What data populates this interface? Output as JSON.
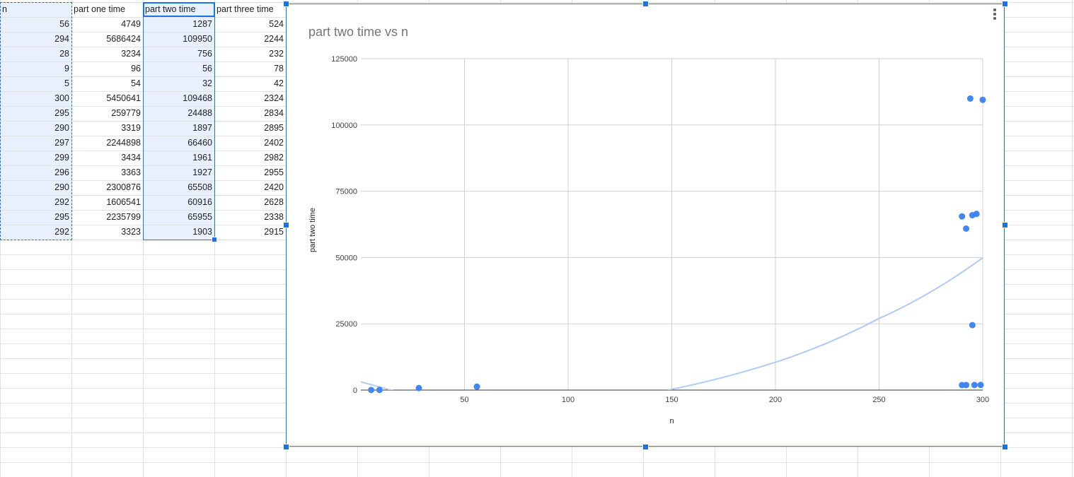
{
  "sheet": {
    "headers": [
      "n",
      "part one time",
      "part two time",
      "part three time"
    ],
    "rows": [
      [
        56,
        4749,
        1287,
        524
      ],
      [
        294,
        5686424,
        109950,
        2244
      ],
      [
        28,
        3234,
        756,
        232
      ],
      [
        9,
        96,
        56,
        78
      ],
      [
        5,
        54,
        32,
        42
      ],
      [
        300,
        5450641,
        109468,
        2324
      ],
      [
        295,
        259779,
        24488,
        2834
      ],
      [
        290,
        3319,
        1897,
        2895
      ],
      [
        297,
        2244898,
        66460,
        2402
      ],
      [
        299,
        3434,
        1961,
        2982
      ],
      [
        296,
        3363,
        1927,
        2955
      ],
      [
        290,
        2300876,
        65508,
        2420
      ],
      [
        292,
        1606541,
        60916,
        2628
      ],
      [
        295,
        2235799,
        65955,
        2338
      ],
      [
        292,
        3323,
        1903,
        2915
      ]
    ]
  },
  "chart_data": {
    "type": "scatter",
    "title": "part two time vs n",
    "xlabel": "n",
    "ylabel": "part two time",
    "xlim": [
      0,
      300
    ],
    "ylim": [
      0,
      125000
    ],
    "xticks": [
      50,
      100,
      150,
      200,
      250,
      300
    ],
    "yticks": [
      0,
      25000,
      50000,
      75000,
      100000,
      125000
    ],
    "grid": true,
    "point_color": "#4285f4",
    "trendline_color": "#aecbfa",
    "points": [
      [
        56,
        1287
      ],
      [
        294,
        109950
      ],
      [
        28,
        756
      ],
      [
        9,
        56
      ],
      [
        5,
        32
      ],
      [
        300,
        109468
      ],
      [
        295,
        24488
      ],
      [
        290,
        1897
      ],
      [
        297,
        66460
      ],
      [
        299,
        1961
      ],
      [
        296,
        1927
      ],
      [
        290,
        65508
      ],
      [
        292,
        60916
      ],
      [
        295,
        65955
      ],
      [
        292,
        1903
      ]
    ],
    "trendline": {
      "type": "polynomial",
      "visible_points": [
        [
          0,
          3100
        ],
        [
          22,
          0
        ],
        [
          148,
          0
        ],
        [
          200,
          10500
        ],
        [
          250,
          27000
        ],
        [
          300,
          49900
        ]
      ]
    }
  }
}
